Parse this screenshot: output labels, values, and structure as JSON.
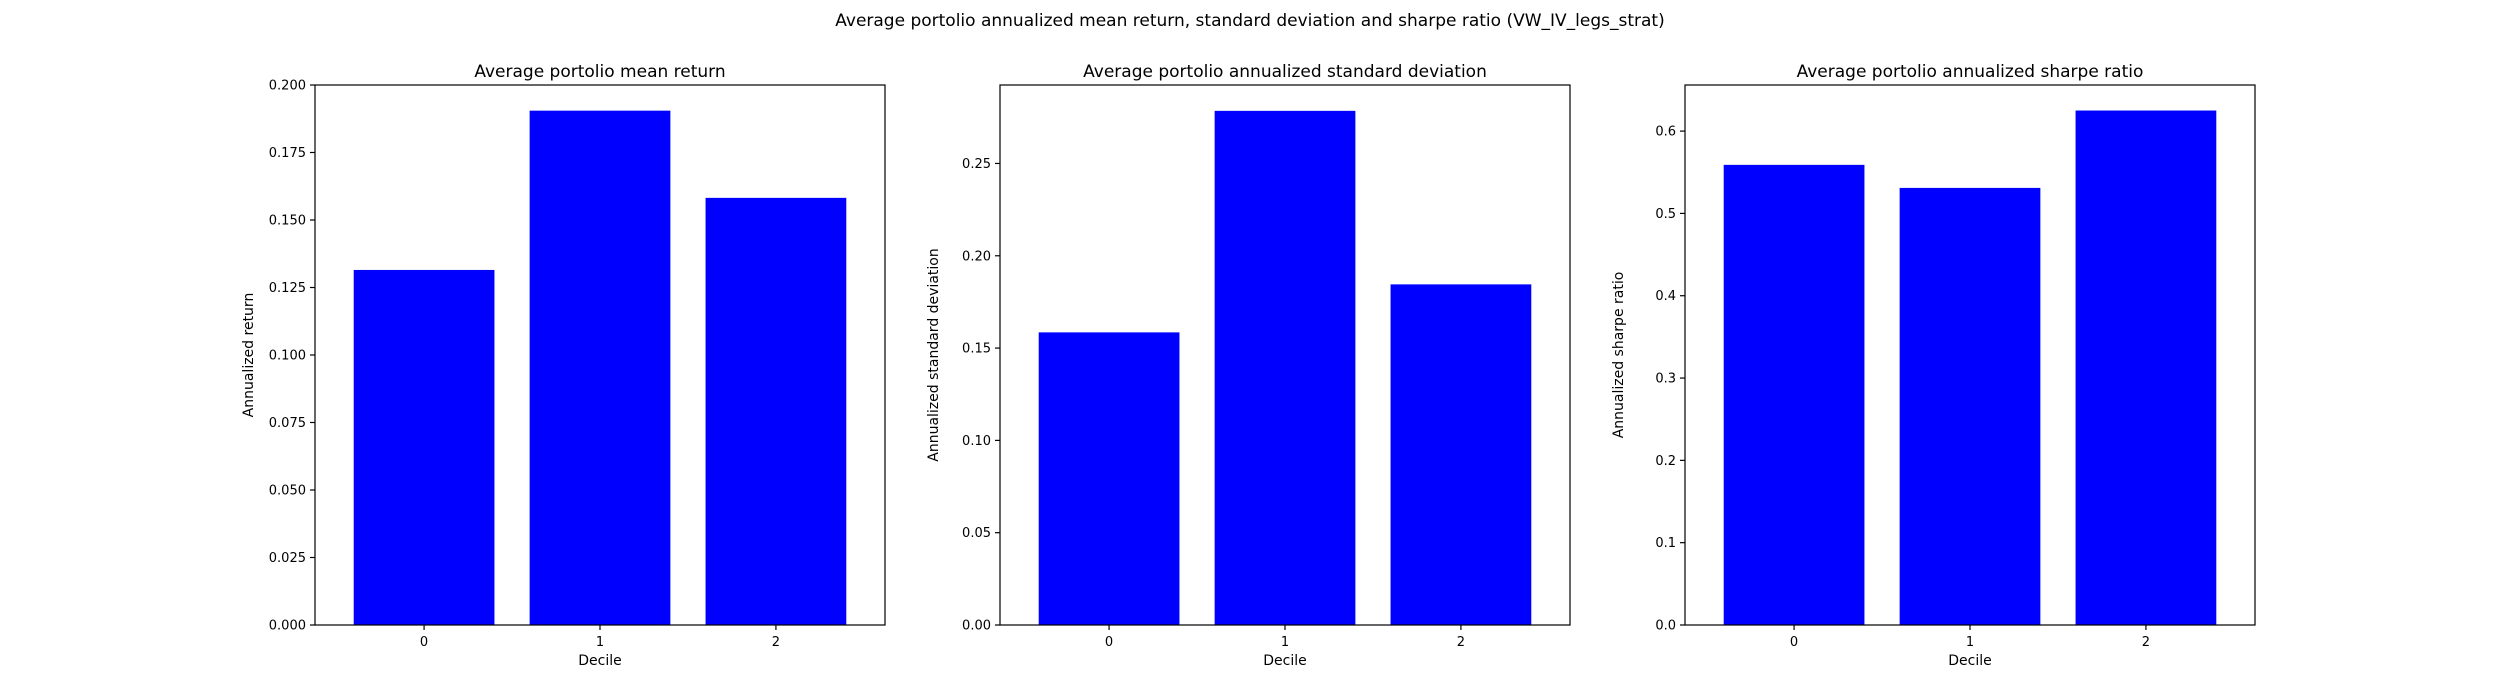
{
  "figure": {
    "suptitle": "Average portolio annualized mean return, standard deviation and sharpe ratio (VW_IV_legs_strat)"
  },
  "colors": {
    "bar": "#0000ff",
    "axes": "#000000",
    "background": "#ffffff"
  },
  "chart_data": [
    {
      "type": "bar",
      "title": "Average portolio mean return",
      "xlabel": "Decile",
      "ylabel": "Annualized return",
      "categories": [
        "0",
        "1",
        "2"
      ],
      "values": [
        0.1315,
        0.1905,
        0.1582
      ],
      "ylim": [
        0,
        0.2
      ],
      "yticks": [
        "0.000",
        "0.025",
        "0.050",
        "0.075",
        "0.100",
        "0.125",
        "0.150",
        "0.175",
        "0.200"
      ],
      "grid": false
    },
    {
      "type": "bar",
      "title": "Average portolio annualized standard deviation",
      "xlabel": "Decile",
      "ylabel": "Annualized standard deviation",
      "categories": [
        "0",
        "1",
        "2"
      ],
      "values": [
        0.1585,
        0.2785,
        0.1845
      ],
      "ylim": [
        0,
        0.2925
      ],
      "yticks": [
        "0.00",
        "0.05",
        "0.10",
        "0.15",
        "0.20",
        "0.25"
      ],
      "grid": false
    },
    {
      "type": "bar",
      "title": "Average portolio annualized sharpe ratio",
      "xlabel": "Decile",
      "ylabel": "Annualized sharpe ratio",
      "categories": [
        "0",
        "1",
        "2"
      ],
      "values": [
        0.559,
        0.531,
        0.625
      ],
      "ylim": [
        0,
        0.656
      ],
      "yticks": [
        "0.0",
        "0.1",
        "0.2",
        "0.3",
        "0.4",
        "0.5",
        "0.6"
      ],
      "grid": false
    }
  ]
}
